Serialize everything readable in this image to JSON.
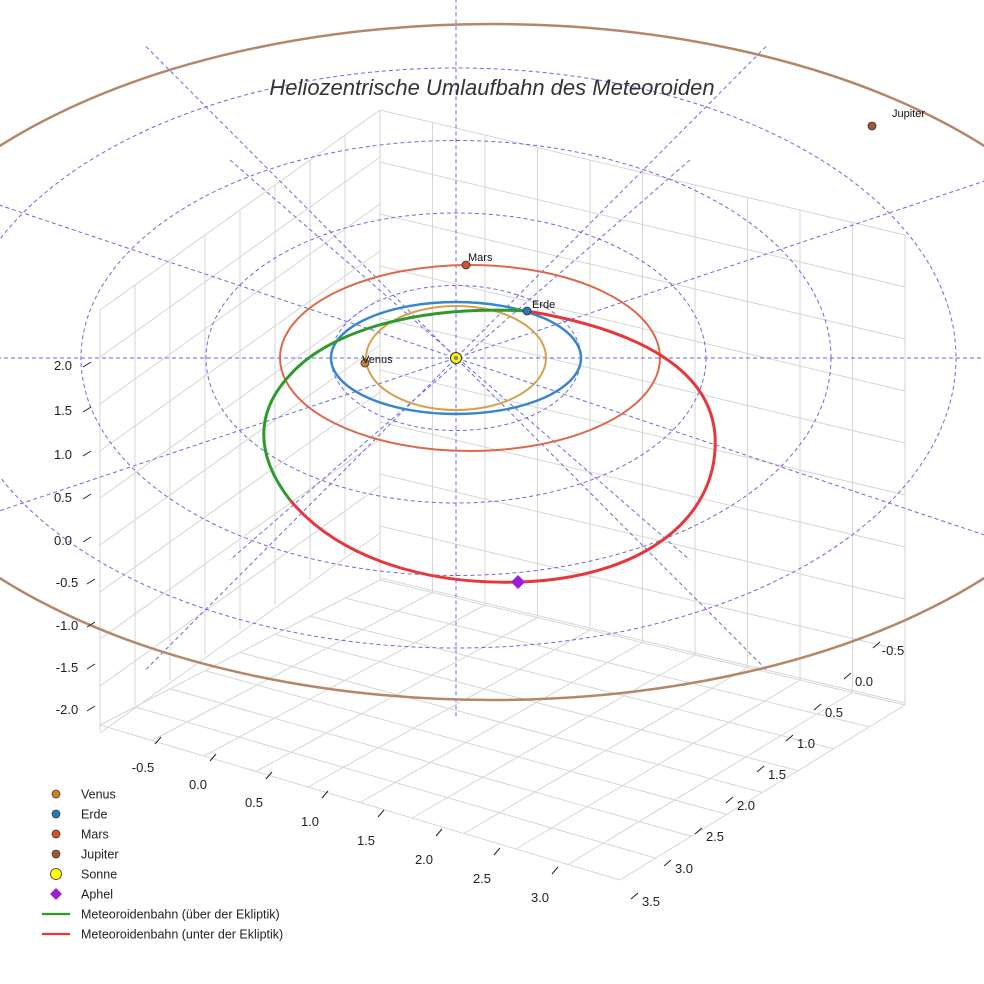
{
  "chart_data": {
    "type": "scatter3d",
    "title": "Heliozentrische Umlaufbahn des Meteoroiden",
    "axes": {
      "x_ticks": [
        "-0.5",
        "0.0",
        "0.5",
        "1.0",
        "1.5",
        "2.0",
        "2.5",
        "3.0"
      ],
      "y_ticks": [
        "-0.5",
        "0.0",
        "0.5",
        "1.0",
        "1.5",
        "2.0",
        "2.5",
        "3.0",
        "3.5"
      ],
      "z_ticks": [
        "2.0",
        "1.5",
        "1.0",
        "0.5",
        "0.0",
        "-0.5",
        "-1.0",
        "-1.5",
        "-2.0"
      ],
      "grid": true
    },
    "planets": [
      {
        "name": "Venus",
        "label": "Venus",
        "color": "#c9822b",
        "orbit_color": "#d4a24c"
      },
      {
        "name": "Erde",
        "label": "Erde",
        "color": "#2a78b8",
        "orbit_color": "#3a86cc"
      },
      {
        "name": "Mars",
        "label": "Mars",
        "color": "#d2522a",
        "orbit_color": "#dc6a4a"
      },
      {
        "name": "Jupiter",
        "label": "Jupiter",
        "color": "#9c5a34",
        "orbit_color": "#b5876a"
      }
    ],
    "sun": {
      "name": "Sonne",
      "color": "#ffff00"
    },
    "aphel": {
      "name": "Aphel",
      "color": "#9b1fd8"
    },
    "series": [
      {
        "name": "Meteoroidenbahn (über der Ekliptik)",
        "color": "#2e9a2e"
      },
      {
        "name": "Meteoroidenbahn (unter der Ekliptik)",
        "color": "#e8373a"
      }
    ],
    "legend": {
      "placement": "bottom-left",
      "entries": [
        {
          "label": "Venus",
          "marker": "circle",
          "color": "#c9822b"
        },
        {
          "label": "Erde",
          "marker": "circle",
          "color": "#2a78b8"
        },
        {
          "label": "Mars",
          "marker": "circle",
          "color": "#d2522a"
        },
        {
          "label": "Jupiter",
          "marker": "circle",
          "color": "#9c5a34"
        },
        {
          "label": "Sonne",
          "marker": "big-circle",
          "color": "#ffff00"
        },
        {
          "label": "Aphel",
          "marker": "diamond",
          "color": "#9b1fd8"
        },
        {
          "label": "Meteoroidenbahn (über der Ekliptik)",
          "marker": "line",
          "color": "#2e9a2e"
        },
        {
          "label": "Meteoroidenbahn (unter der Ekliptik)",
          "marker": "line",
          "color": "#e8373a"
        }
      ]
    }
  }
}
